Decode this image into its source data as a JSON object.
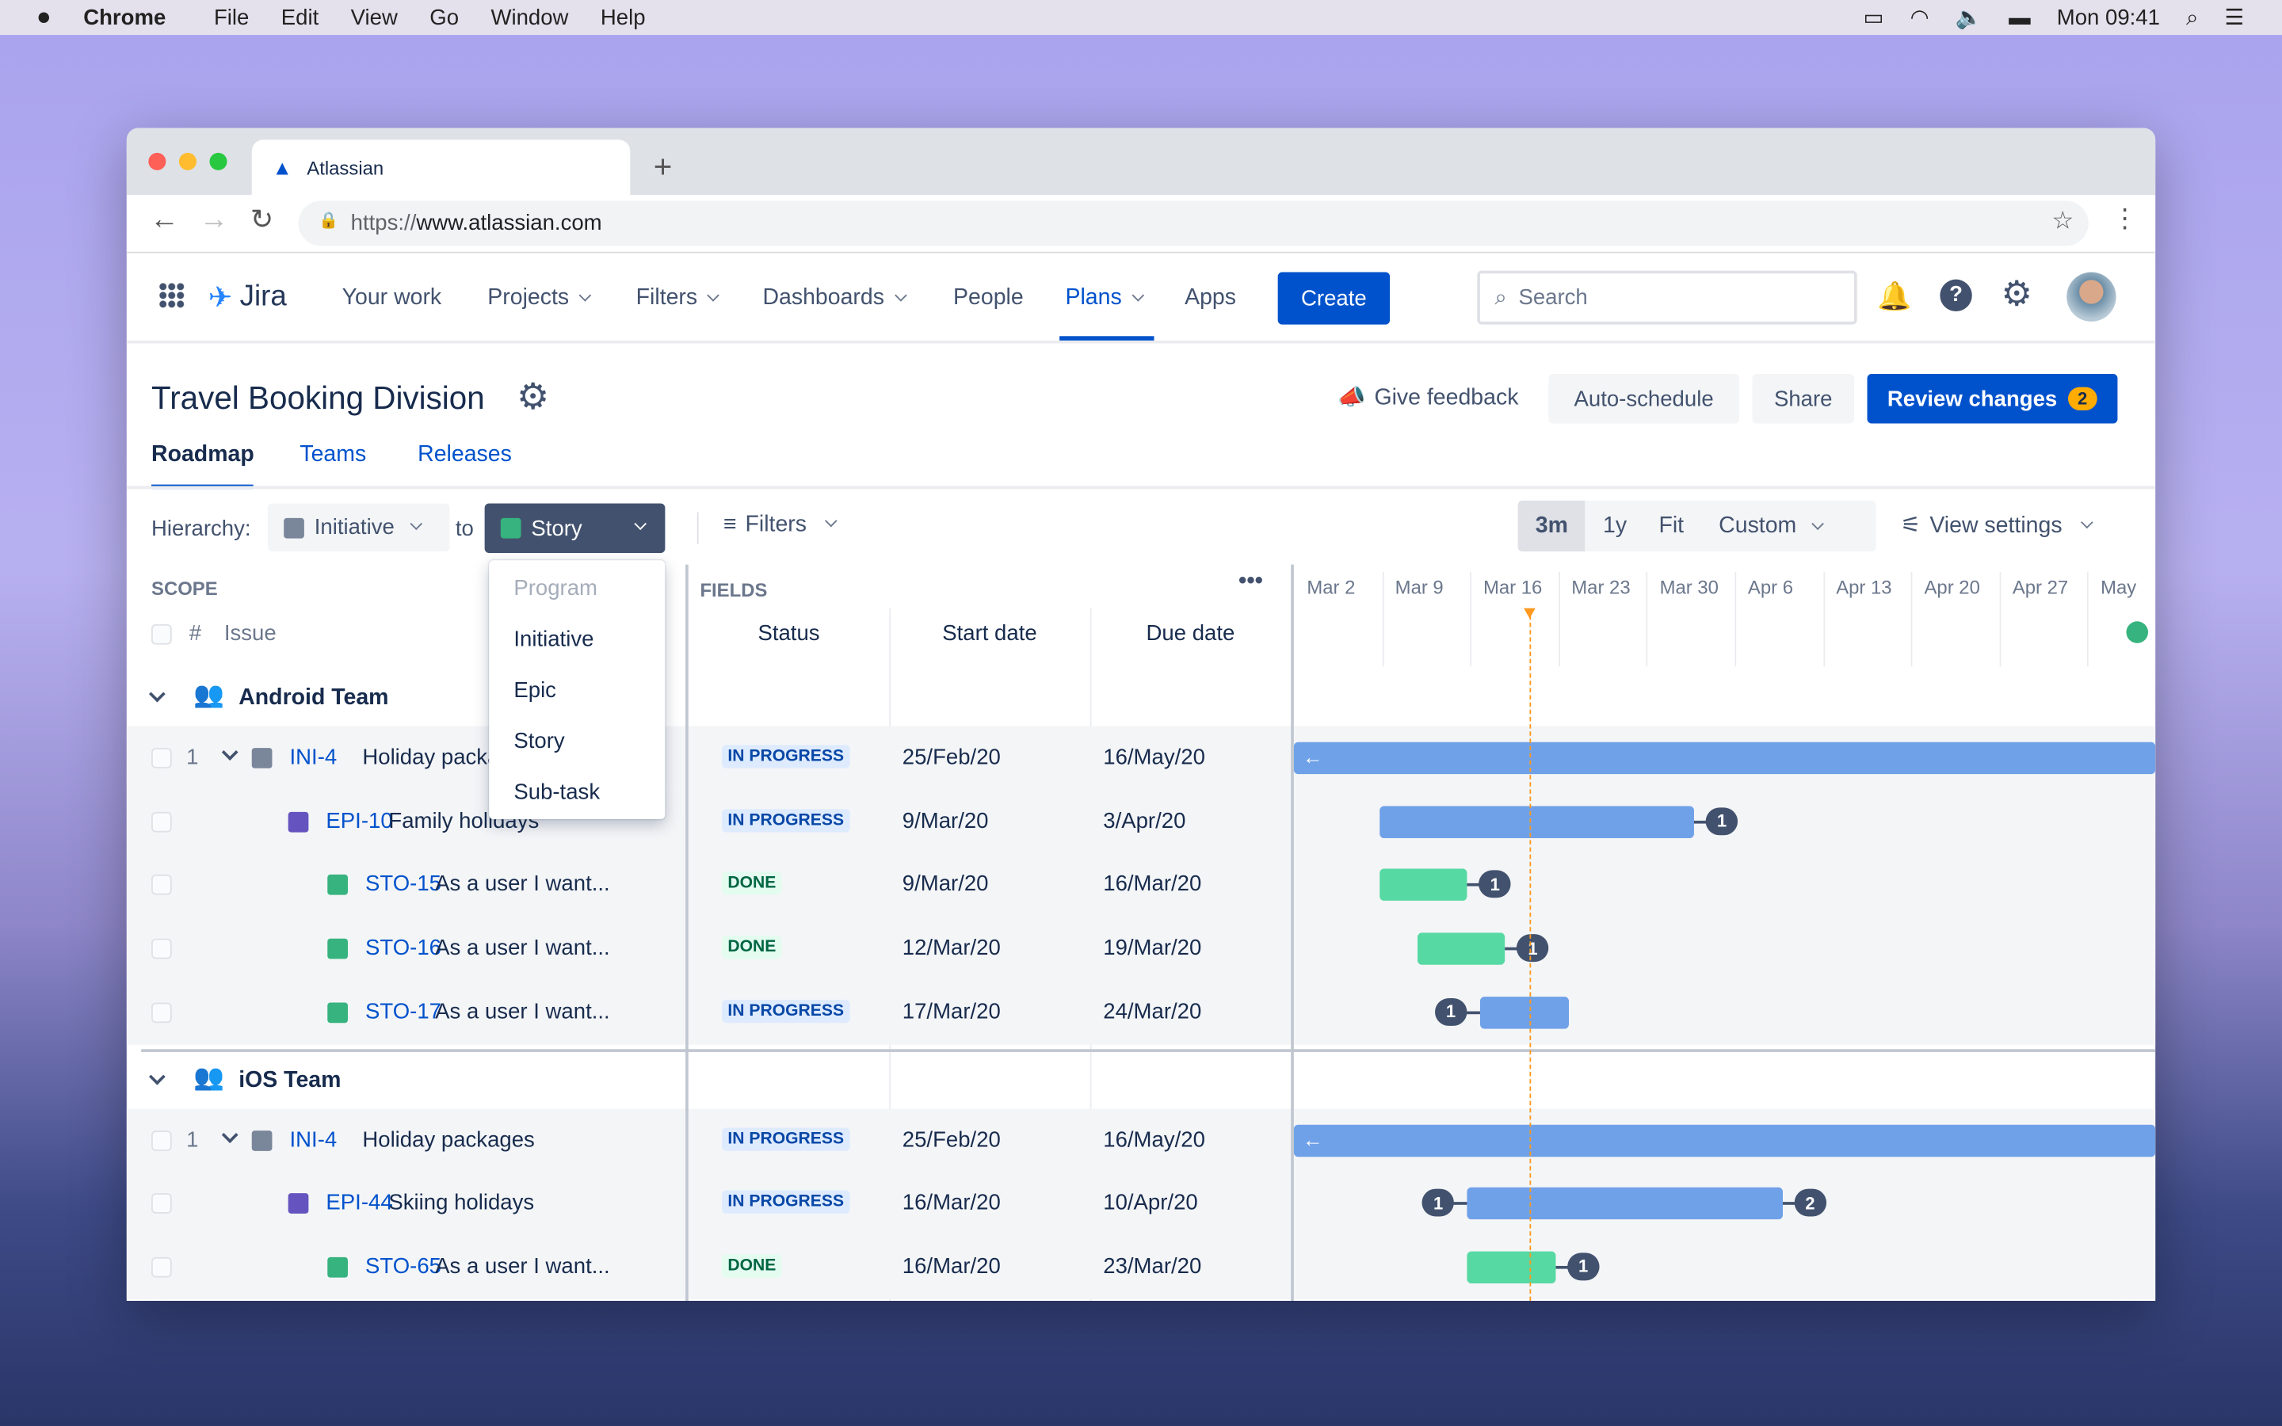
{
  "menubar": {
    "app": "Chrome",
    "items": [
      "File",
      "Edit",
      "View",
      "Go",
      "Window",
      "Help"
    ],
    "clock": "Mon 09:41"
  },
  "browser": {
    "tab_title": "Atlassian",
    "url_scheme": "https://",
    "url_host": "www.atlassian.com"
  },
  "jira": {
    "logo": "Jira",
    "nav": [
      {
        "label": "Your work",
        "dropdown": false
      },
      {
        "label": "Projects",
        "dropdown": true
      },
      {
        "label": "Filters",
        "dropdown": true
      },
      {
        "label": "Dashboards",
        "dropdown": true
      },
      {
        "label": "People",
        "dropdown": false
      },
      {
        "label": "Plans",
        "dropdown": true,
        "active": true
      },
      {
        "label": "Apps",
        "dropdown": false
      }
    ],
    "create": "Create",
    "search_placeholder": "Search"
  },
  "plan": {
    "title": "Travel Booking Division",
    "actions": {
      "feedback": "Give feedback",
      "auto": "Auto-schedule",
      "share": "Share",
      "review": "Review changes",
      "review_count": "2"
    },
    "tabs": [
      {
        "label": "Roadmap",
        "active": true
      },
      {
        "label": "Teams"
      },
      {
        "label": "Releases"
      }
    ]
  },
  "toolbar": {
    "hierarchy_label": "Hierarchy:",
    "from": "Initiative",
    "to_label": "to",
    "to": "Story",
    "filters": "Filters",
    "ranges": [
      "3m",
      "1y",
      "Fit"
    ],
    "range_selected": "3m",
    "custom": "Custom",
    "view_settings": "View settings"
  },
  "dropdown": {
    "options": [
      {
        "label": "Program",
        "disabled": true
      },
      {
        "label": "Initiative"
      },
      {
        "label": "Epic"
      },
      {
        "label": "Story"
      },
      {
        "label": "Sub-task"
      }
    ]
  },
  "scope": {
    "header": "SCOPE",
    "hash": "#",
    "issue": "Issue"
  },
  "fields": {
    "header": "FIELDS",
    "columns": [
      "Status",
      "Start date",
      "Due date"
    ]
  },
  "timeline": {
    "weeks": [
      "Mar 2",
      "Mar 9",
      "Mar 16",
      "Mar 23",
      "Mar 30",
      "Apr 6",
      "Apr 13",
      "Apr 20",
      "Apr 27",
      "May"
    ]
  },
  "colors": {
    "accent": "#0052cc",
    "bar_blue": "#6fa1e8",
    "bar_green": "#57d9a3",
    "today": "#ff991f"
  },
  "groups": [
    {
      "name": "Android Team",
      "rows": [
        {
          "rank": "1",
          "type": "initiative",
          "key": "INI-4",
          "summary": "Holiday packages",
          "status": "IN PROGRESS",
          "start": "25/Feb/20",
          "due": "16/May/20",
          "bar": "blue",
          "arrow_left": true
        },
        {
          "type": "epic",
          "key": "EPI-10",
          "summary": "Family holidays",
          "status": "IN PROGRESS",
          "start": "9/Mar/20",
          "due": "3/Apr/20",
          "bar": "blue",
          "dep_right": "1"
        },
        {
          "type": "story",
          "key": "STO-15",
          "summary": "As a user I want...",
          "status": "DONE",
          "start": "9/Mar/20",
          "due": "16/Mar/20",
          "bar": "green",
          "dep_right": "1"
        },
        {
          "type": "story",
          "key": "STO-16",
          "summary": "As a user I want...",
          "status": "DONE",
          "start": "12/Mar/20",
          "due": "19/Mar/20",
          "bar": "green",
          "dep_right": "1"
        },
        {
          "type": "story",
          "key": "STO-17",
          "summary": "As a user I want...",
          "status": "IN PROGRESS",
          "start": "17/Mar/20",
          "due": "24/Mar/20",
          "bar": "blue",
          "dep_left": "1"
        }
      ]
    },
    {
      "name": "iOS Team",
      "rows": [
        {
          "rank": "1",
          "type": "initiative",
          "key": "INI-4",
          "summary": "Holiday packages",
          "status": "IN PROGRESS",
          "start": "25/Feb/20",
          "due": "16/May/20",
          "bar": "blue",
          "arrow_left": true
        },
        {
          "type": "epic",
          "key": "EPI-44",
          "summary": "Skiing holidays",
          "status": "IN PROGRESS",
          "start": "16/Mar/20",
          "due": "10/Apr/20",
          "bar": "blue",
          "dep_left": "1",
          "dep_right": "2"
        },
        {
          "type": "story",
          "key": "STO-65",
          "summary": "As a user I want...",
          "status": "DONE",
          "start": "16/Mar/20",
          "due": "23/Mar/20",
          "bar": "green",
          "dep_right": "1"
        }
      ]
    }
  ]
}
